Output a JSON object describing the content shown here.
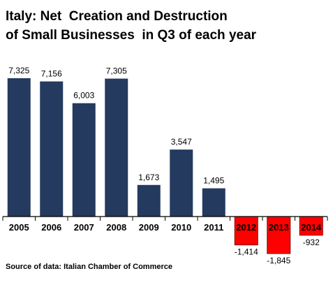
{
  "chart_data": {
    "type": "bar",
    "title_lines": [
      "Italy: Net  Creation and Destruction",
      "of Small Businesses  in Q3 of each year"
    ],
    "categories": [
      "2005",
      "2006",
      "2007",
      "2008",
      "2009",
      "2010",
      "2011",
      "2012",
      "2013",
      "2014"
    ],
    "values": [
      7325,
      7156,
      6003,
      7305,
      1673,
      3547,
      1495,
      -1414,
      -1845,
      -932
    ],
    "value_labels": [
      "7,325",
      "7,156",
      "6,003",
      "7,305",
      "1,673",
      "3,547",
      "1,495",
      "-1,414",
      "-1,845",
      "-932"
    ],
    "xlabel": "",
    "ylabel": "",
    "ylim": [
      -1845,
      7325
    ],
    "grid": false,
    "legend": "none",
    "colors": {
      "positive": "#243a5e",
      "negative": "#ff0000",
      "negative_border": "#8b0000",
      "axis": "#000000"
    },
    "source": "Source of data: Italian Chamber of Commerce"
  }
}
